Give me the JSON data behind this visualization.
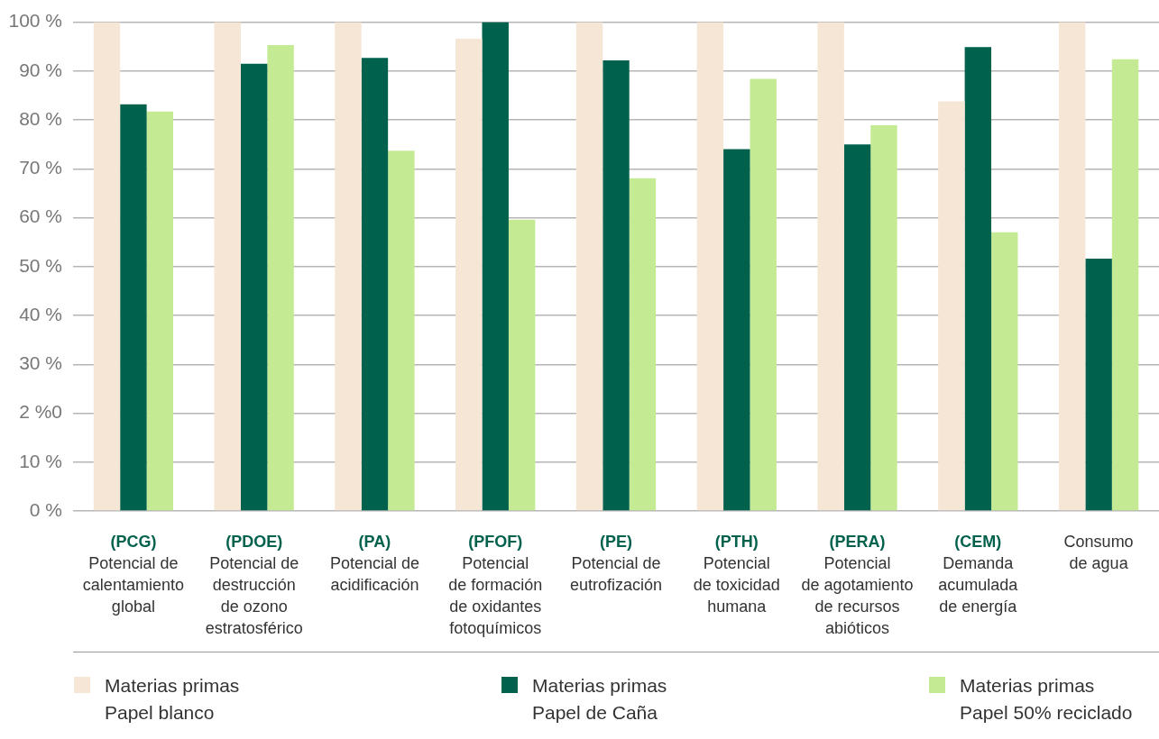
{
  "chart_data": {
    "type": "bar",
    "categories": [
      "(PCG)\nPotencial de\ncalentamiento\nglobal",
      "(PDOE)\nPotencial de\ndestrucción\nde ozono\nestratosférico",
      "(PA)\nPotencial de\nacidificación",
      "(PFOF)\nPotencial\nde formación\nde oxidantes\nfotoquímicos",
      "(PE)\nPotencial de\neutrofización",
      "(PTH)\nPotencial\nde toxicidad\nhumana",
      "(PERA)\nPotencial\nde agotamiento\nde recursos\nabióticos",
      "(CEM)\nDemanda\nacumulada\nde energía",
      "Consumo\nde agua"
    ],
    "series": [
      {
        "name": "Materias primas\nPapel blanco",
        "color": "#f5e6d5",
        "values": [
          100,
          100,
          100,
          96.6,
          100,
          100,
          100,
          83.8,
          100
        ]
      },
      {
        "name": "Materias primas\nPapel de Caña",
        "color": "#00614c",
        "values": [
          83.2,
          91.5,
          92.7,
          100,
          92.2,
          74.0,
          75.0,
          94.9,
          51.6
        ]
      },
      {
        "name": "Materias primas\nPapel 50% reciclado",
        "color": "#c4eb93",
        "values": [
          81.7,
          95.3,
          73.7,
          59.6,
          68.1,
          88.4,
          78.9,
          57.0,
          92.4
        ]
      }
    ],
    "ylim": [
      0,
      100
    ],
    "yticks": [
      {
        "value": 0,
        "label": "0 %"
      },
      {
        "value": 10,
        "label": "10 %"
      },
      {
        "value": 20,
        "label": "2 %0"
      },
      {
        "value": 30,
        "label": "30 %"
      },
      {
        "value": 40,
        "label": "40 %"
      },
      {
        "value": 50,
        "label": "50 %"
      },
      {
        "value": 60,
        "label": "60 %"
      },
      {
        "value": 70,
        "label": "70 %"
      },
      {
        "value": 80,
        "label": "80 %"
      },
      {
        "value": 90,
        "label": "90 %"
      },
      {
        "value": 100,
        "label": "100 %"
      }
    ],
    "grid": "y",
    "legend": "bottom"
  }
}
